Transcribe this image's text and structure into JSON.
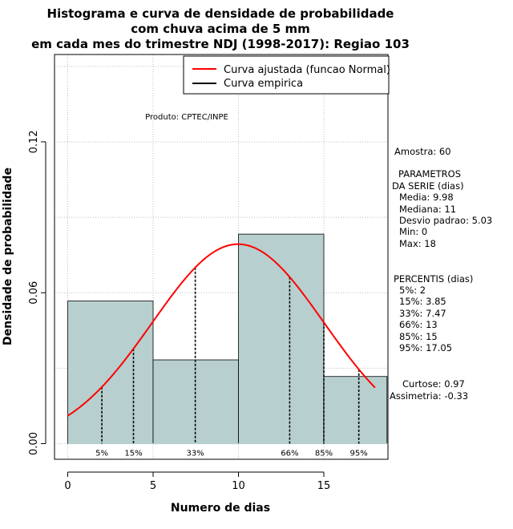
{
  "chart_data": {
    "type": "histogram",
    "title": [
      "Histograma e curva de densidade de probabilidade",
      "com chuva acima de 5 mm",
      "em cada mes do trimestre NDJ (1998-2017): Regiao 103"
    ],
    "xlabel": "Numero de dias",
    "ylabel": "Densidade de probabilidade",
    "xlim": [
      -0.7,
      18.7
    ],
    "ylim": [
      0,
      0.15
    ],
    "xticks": [
      0,
      5,
      10,
      15
    ],
    "yticks": [
      {
        "value": 0.0,
        "label": "0.00"
      },
      {
        "value": 0.06,
        "label": "0.06"
      },
      {
        "value": 0.12,
        "label": "0.12"
      }
    ],
    "grid": true,
    "bins": [
      {
        "x0": 0,
        "x1": 5,
        "density": 0.0567
      },
      {
        "x0": 5,
        "x1": 10,
        "density": 0.0333
      },
      {
        "x0": 10,
        "x1": 15,
        "density": 0.0833
      },
      {
        "x0": 15,
        "x1": 18.7,
        "density": 0.0267
      }
    ],
    "fitted_curve": {
      "name": "Curva ajustada (funcao Normal)",
      "dist": "normal",
      "mean": 9.98,
      "sd": 5.03,
      "x_range": [
        0,
        18
      ],
      "color": "#ff0000"
    },
    "empirical_curve": {
      "name": "Curva empirica",
      "color": "#000000"
    },
    "percentiles": [
      {
        "label": "5%",
        "x": 2
      },
      {
        "label": "15%",
        "x": 3.85
      },
      {
        "label": "33%",
        "x": 7.47
      },
      {
        "label": "66%",
        "x": 13
      },
      {
        "label": "85%",
        "x": 15
      },
      {
        "label": "95%",
        "x": 17.05
      }
    ],
    "legend_position": "top-right",
    "bar_color": "#b7cfcf"
  },
  "credit": "Produto: CPTEC/INPE",
  "stats": {
    "amostra": "Amostra: 60",
    "parametros_title_1": "PARAMETROS",
    "parametros_title_2": "DA SERIE (dias)",
    "media": "Media: 9.98",
    "mediana": "Mediana: 11",
    "desvio": "Desvio padrao: 5.03",
    "min": "Min: 0",
    "max": "Max: 18",
    "percentis_title": "PERCENTIS (dias)",
    "p5": "5%: 2",
    "p15": "15%: 3.85",
    "p33": "33%: 7.47",
    "p66": "66%: 13",
    "p85": "85%: 15",
    "p95": "95%: 17.05",
    "curtose": "Curtose: 0.97",
    "assimetria": "Assimetria: -0.33"
  }
}
